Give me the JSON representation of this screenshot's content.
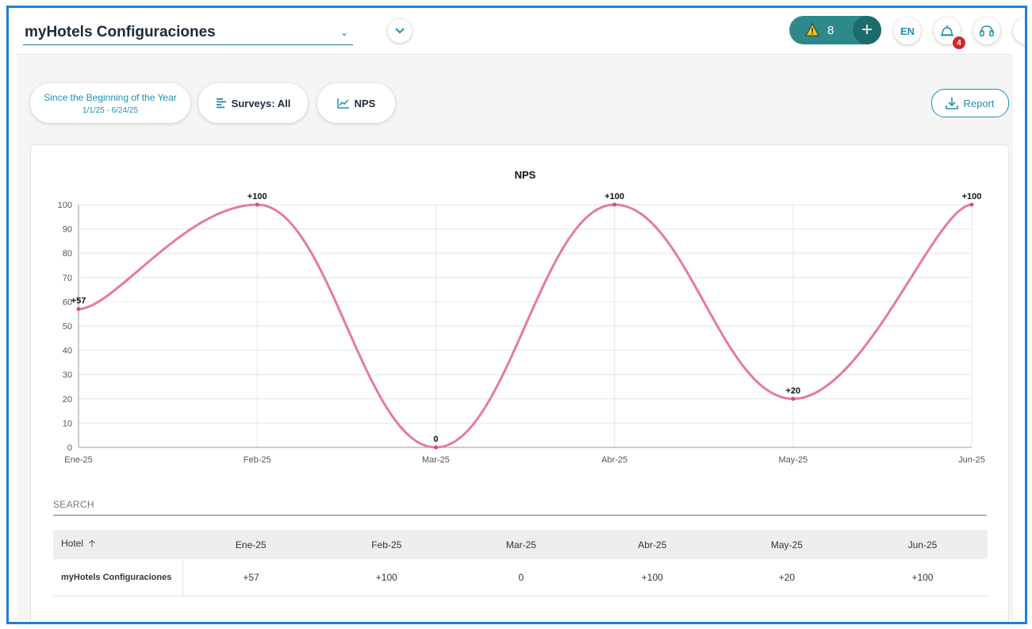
{
  "header": {
    "hotel_title": "myHotels Configuraciones",
    "alert_count": "8",
    "plus_label": "+",
    "lang_label": "EN",
    "notifications_badge": "4"
  },
  "filters": {
    "date_range_title": "Since the Beginning of the Year",
    "date_range_value": "1/1/25 - 6/24/25",
    "surveys_label": "Surveys: All",
    "metric_label": "NPS",
    "report_label": "Report"
  },
  "chart_data": {
    "type": "line",
    "title": "NPS",
    "categories": [
      "Ene-25",
      "Feb-25",
      "Mar-25",
      "Abr-25",
      "May-25",
      "Jun-25"
    ],
    "series": [
      {
        "values": [
          57,
          100,
          0,
          100,
          20,
          100
        ]
      }
    ],
    "data_labels": [
      "+57",
      "+100",
      "0",
      "+100",
      "+20",
      "+100"
    ],
    "y_ticks": [
      0,
      10,
      20,
      30,
      40,
      50,
      60,
      70,
      80,
      90,
      100
    ],
    "ylim": [
      0,
      100
    ],
    "grid": true,
    "line_color": "#e57aa0"
  },
  "table": {
    "search_placeholder": "SEARCH",
    "columns": [
      "Hotel",
      "Ene-25",
      "Feb-25",
      "Mar-25",
      "Abr-25",
      "May-25",
      "Jun-25"
    ],
    "rows": [
      [
        "myHotels Configuraciones",
        "+57",
        "+100",
        "0",
        "+100",
        "+20",
        "+100"
      ]
    ]
  },
  "colors": {
    "accent": "#1e8fb3",
    "alert_pill": "#2e8a8a",
    "frame_border": "#1e7fd8"
  }
}
